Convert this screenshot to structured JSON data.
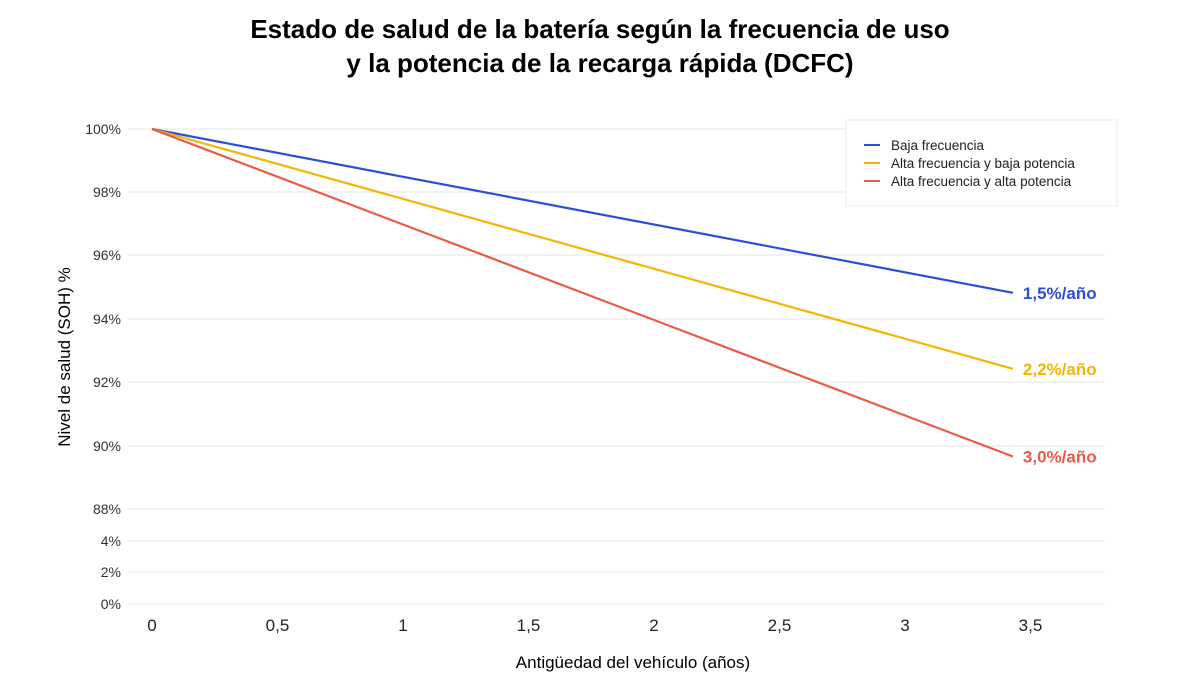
{
  "chart_data": {
    "type": "line",
    "title_line1": "Estado de salud de la batería según la frecuencia de uso",
    "title_line2": "y la potencia de la recarga rápida (DCFC)",
    "xlabel": "Antigüedad del vehículo (años)",
    "ylabel": "Nivel de salud (SOH) %",
    "x_ticks": [
      "0",
      "0,5",
      "1",
      "1,5",
      "2",
      "2,5",
      "3",
      "3,5"
    ],
    "x_tick_values": [
      0,
      0.5,
      1,
      1.5,
      2,
      2.5,
      3,
      3.5
    ],
    "xlim": [
      0,
      3.5
    ],
    "y_ticks": [
      "100%",
      "98%",
      "96%",
      "94%",
      "92%",
      "90%",
      "88%",
      "4%",
      "2%",
      "0%"
    ],
    "grid": true,
    "legend_position": "top-right",
    "series": [
      {
        "name": "Baja frecuencia",
        "color": "#2c4fd6",
        "x": [
          0,
          3.43
        ],
        "y": [
          100,
          94.85
        ],
        "end_label": "1,5%/año"
      },
      {
        "name": "Alta frecuencia y baja potencia",
        "color": "#f2b705",
        "x": [
          0,
          3.43
        ],
        "y": [
          100,
          92.46
        ],
        "end_label": "2,2%/año"
      },
      {
        "name": "Alta frecuencia y alta potencia",
        "color": "#ea5a45",
        "x": [
          0,
          3.43
        ],
        "y": [
          100,
          89.7
        ],
        "end_label": "3,0%/año"
      }
    ]
  }
}
